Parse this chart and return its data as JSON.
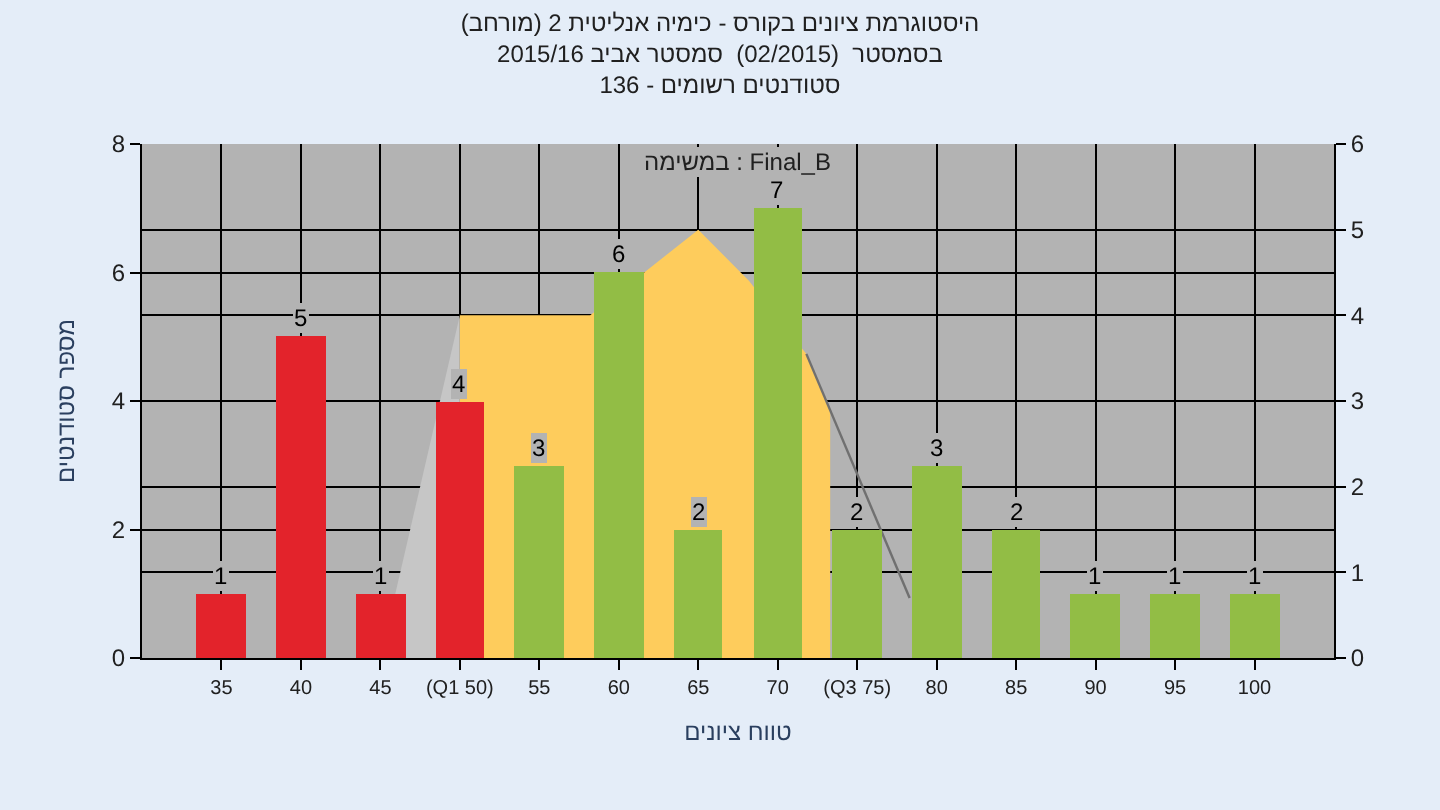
{
  "chart_data": {
    "type": "bar",
    "title": "היסטוגרמת ציונים בקורס - כימיה אנליטית 2 (מורחב)",
    "subtitle": "בסמסטר  (02/2015)  סמסטר אביב 2015/16\nסטודנטים רשומים - 136",
    "xlabel": "טווח ציונים",
    "ylabel": "מספר סטודנטים",
    "annotations": [
      "במשימה : Final_B"
    ],
    "x": [
      35,
      40,
      45,
      50,
      55,
      60,
      65,
      70,
      75,
      80,
      85,
      90,
      95,
      100
    ],
    "xlim": [
      30,
      105
    ],
    "xticks": [
      35,
      40,
      45,
      {
        "value": 50,
        "label": "(Q1 50)"
      },
      55,
      60,
      65,
      70,
      {
        "value": 75,
        "label": "(Q3 75)"
      },
      80,
      85,
      90,
      95,
      100
    ],
    "ylim": [
      0,
      8
    ],
    "yticks": [
      0,
      2,
      4,
      6,
      8
    ],
    "y2lim": [
      0,
      6
    ],
    "y2ticks": [
      0,
      1,
      2,
      3,
      4,
      5,
      6
    ],
    "series": [
      {
        "type": "area",
        "axis": "y2",
        "color": "#c6c6c6",
        "x": [
          45,
          50,
          50
        ],
        "values": [
          0,
          4,
          0
        ]
      },
      {
        "type": "area",
        "axis": "y2",
        "color": "#fecc5c",
        "x": [
          50,
          50,
          58.2,
          65,
          68.2,
          71.8,
          73.3,
          73.3
        ],
        "values": [
          0,
          4,
          4,
          5,
          4.4,
          3.55,
          2.9,
          0
        ]
      },
      {
        "type": "line",
        "axis": "y2",
        "color": "#707070",
        "x": [
          71.8,
          78.3
        ],
        "values": [
          3.55,
          0.7
        ]
      },
      {
        "values": [
          1,
          5,
          1,
          4,
          3,
          6,
          2,
          7,
          2,
          3,
          2,
          1,
          1,
          1
        ],
        "value_labels": [
          "1",
          "5",
          "1",
          "4",
          "3",
          "6",
          "2",
          "7",
          "2",
          "3",
          "2",
          "1",
          "1",
          "1"
        ],
        "colors": [
          "#e3232b",
          "#e3232b",
          "#e3232b",
          "#e3232b",
          "#92bd45",
          "#92bd45",
          "#92bd45",
          "#92bd45",
          "#92bd45",
          "#92bd45",
          "#92bd45",
          "#92bd45",
          "#92bd45",
          "#92bd45"
        ]
      }
    ],
    "grid": true
  }
}
